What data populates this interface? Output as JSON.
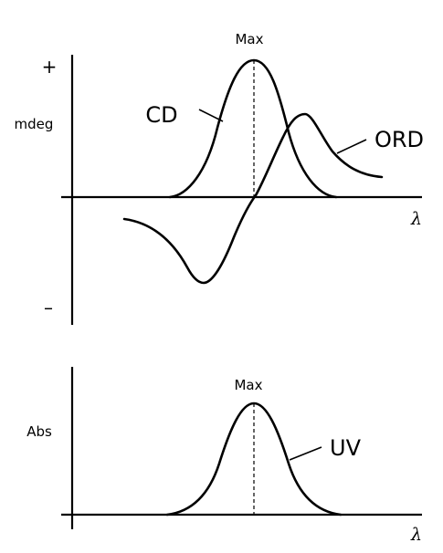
{
  "top_panel": {
    "max_label": "Max",
    "plus_label": "+",
    "minus_label": "–",
    "y_label": "mdeg",
    "x_label": "λ",
    "cd_label": "CD",
    "ord_label": "ORD"
  },
  "bottom_panel": {
    "max_label": "Max",
    "y_label": "Abs",
    "x_label": "λ",
    "uv_label": "UV"
  }
}
